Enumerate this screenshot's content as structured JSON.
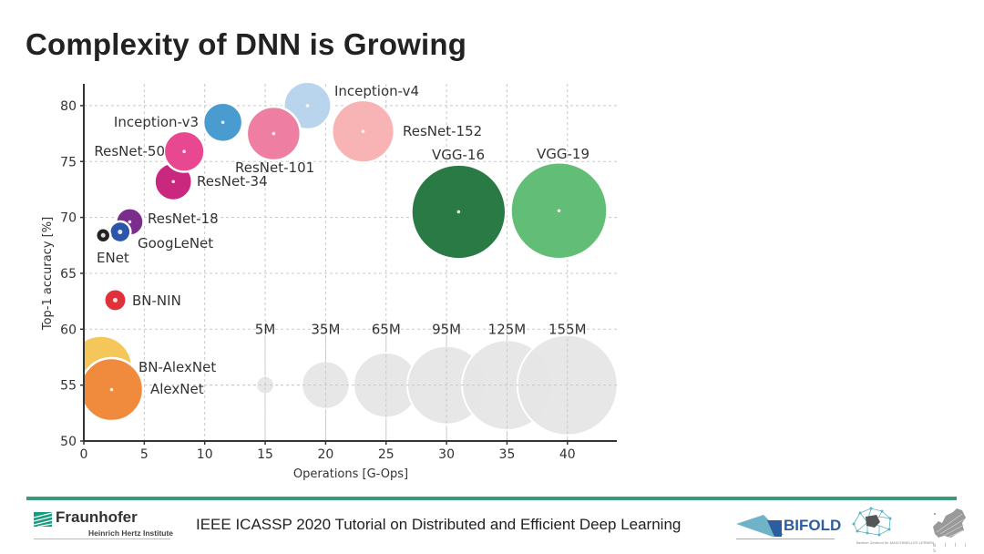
{
  "slide": {
    "title": "Complexity of DNN is Growing",
    "footer_text": "IEEE ICASSP 2020 Tutorial on Distributed and Efficient Deep Learning",
    "footer_line_color": "#3a9a7e"
  },
  "logos": {
    "fraunhofer": {
      "name": "Fraunhofer",
      "subtitle": "Heinrich Hertz Institute",
      "color": "#179c7d"
    },
    "bifold": {
      "name": "BIFOLD",
      "color": "#2e5d9e",
      "accent": "#6fb3c9"
    },
    "bzml": {
      "caption": "Berliner Zentrum für MASCHINELLES LERNEN"
    },
    "ellis": {
      "caption": "e l l i s"
    }
  },
  "chart_data": {
    "type": "scatter",
    "subtype": "bubble",
    "title": "",
    "xlabel": "Operations [G-Ops]",
    "ylabel": "Top-1 accuracy [%]",
    "xlim": [
      0,
      44
    ],
    "ylim": [
      50,
      82
    ],
    "xticks": [
      0,
      5,
      10,
      15,
      20,
      25,
      30,
      35,
      40
    ],
    "yticks": [
      50,
      55,
      60,
      65,
      70,
      75,
      80
    ],
    "grid": true,
    "grid_style": "dashed",
    "size_encoding": "number of parameters (bubble area)",
    "points": [
      {
        "name": "AlexNet",
        "x": 2.3,
        "y": 54.6,
        "params_M": 61,
        "color": "#f08a3c",
        "label_pos": "right"
      },
      {
        "name": "BN-AlexNet",
        "x": 1.4,
        "y": 56.6,
        "params_M": 61,
        "color": "#f5c65a",
        "label_pos": "right"
      },
      {
        "name": "BN-NIN",
        "x": 2.6,
        "y": 62.6,
        "params_M": 7.6,
        "color": "#e0303a",
        "label_pos": "right"
      },
      {
        "name": "ENet",
        "x": 1.6,
        "y": 68.4,
        "params_M": 0.37,
        "color": "#222222",
        "label_pos": "below"
      },
      {
        "name": "GoogLeNet",
        "x": 3.0,
        "y": 68.7,
        "params_M": 6.8,
        "color": "#2a55a8",
        "label_pos": "below-right"
      },
      {
        "name": "ResNet-18",
        "x": 3.8,
        "y": 69.6,
        "params_M": 11.7,
        "color": "#7b2d8b",
        "label_pos": "right"
      },
      {
        "name": "ResNet-34",
        "x": 7.4,
        "y": 73.2,
        "params_M": 21.8,
        "color": "#c9287e",
        "label_pos": "right"
      },
      {
        "name": "ResNet-50",
        "x": 8.3,
        "y": 75.9,
        "params_M": 25.5,
        "color": "#e8488f",
        "label_pos": "left"
      },
      {
        "name": "Inception-v3",
        "x": 11.5,
        "y": 78.5,
        "params_M": 23.8,
        "color": "#4a9bd0",
        "label_pos": "left"
      },
      {
        "name": "ResNet-101",
        "x": 15.7,
        "y": 77.5,
        "params_M": 44.5,
        "color": "#ee7fa2",
        "label_pos": "below"
      },
      {
        "name": "Inception-v4",
        "x": 18.5,
        "y": 80.0,
        "params_M": 35,
        "color": "#b9d5ee",
        "label_pos": "upper-right"
      },
      {
        "name": "ResNet-152",
        "x": 23.1,
        "y": 77.7,
        "params_M": 60.2,
        "color": "#f8b3b5",
        "label_pos": "right"
      },
      {
        "name": "VGG-16",
        "x": 31.0,
        "y": 70.5,
        "params_M": 138,
        "color": "#2a7a45",
        "label_pos": "above"
      },
      {
        "name": "VGG-19",
        "x": 39.3,
        "y": 70.6,
        "params_M": 144,
        "color": "#62bd76",
        "label_pos": "above"
      }
    ],
    "size_legend": {
      "y": 55,
      "color": "#e6e6e6",
      "entries": [
        {
          "label": "5M",
          "x": 15,
          "params_M": 5
        },
        {
          "label": "35M",
          "x": 20,
          "params_M": 35
        },
        {
          "label": "65M",
          "x": 25,
          "params_M": 65
        },
        {
          "label": "95M",
          "x": 30,
          "params_M": 95
        },
        {
          "label": "125M",
          "x": 35,
          "params_M": 125
        },
        {
          "label": "155M",
          "x": 40,
          "params_M": 155
        }
      ]
    }
  }
}
